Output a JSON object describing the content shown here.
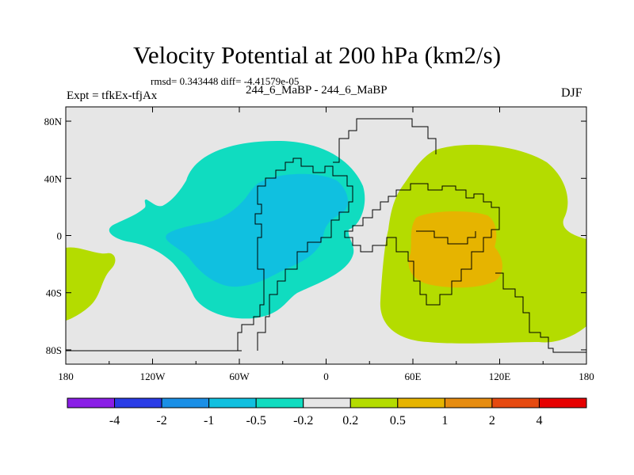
{
  "title": "Velocity Potential at 200 hPa (km2/s)",
  "stats": "rmsd= 0.343448  diff= -4.41579e-05",
  "left_label": "Expt = tfkEx-tfjAx",
  "center_label": "244_6_MaBP - 244_6_MaBP",
  "right_label": "DJF",
  "x_ticks": [
    "180",
    "120W",
    "60W",
    "0",
    "60E",
    "120E",
    "180"
  ],
  "y_ticks": [
    "80N",
    "40N",
    "0",
    "40S",
    "80S"
  ],
  "colorbar": {
    "colors": [
      "#8a1ee6",
      "#2a3ce6",
      "#1a8fe6",
      "#10c0e0",
      "#10dcc0",
      "#e6e6e6",
      "#b4dc00",
      "#e6b400",
      "#e68c10",
      "#e64a10",
      "#e60000"
    ],
    "labels": [
      "-4",
      "-2",
      "-1",
      "-0.5",
      "-0.2",
      "0.2",
      "0.5",
      "1",
      "2",
      "4"
    ]
  },
  "fill_colors": {
    "background": "#e6e6e6",
    "neg_outer": "#10dcc0",
    "neg_inner": "#10c0e0",
    "pos_outer": "#b4dc00",
    "pos_inner": "#e6b400"
  }
}
